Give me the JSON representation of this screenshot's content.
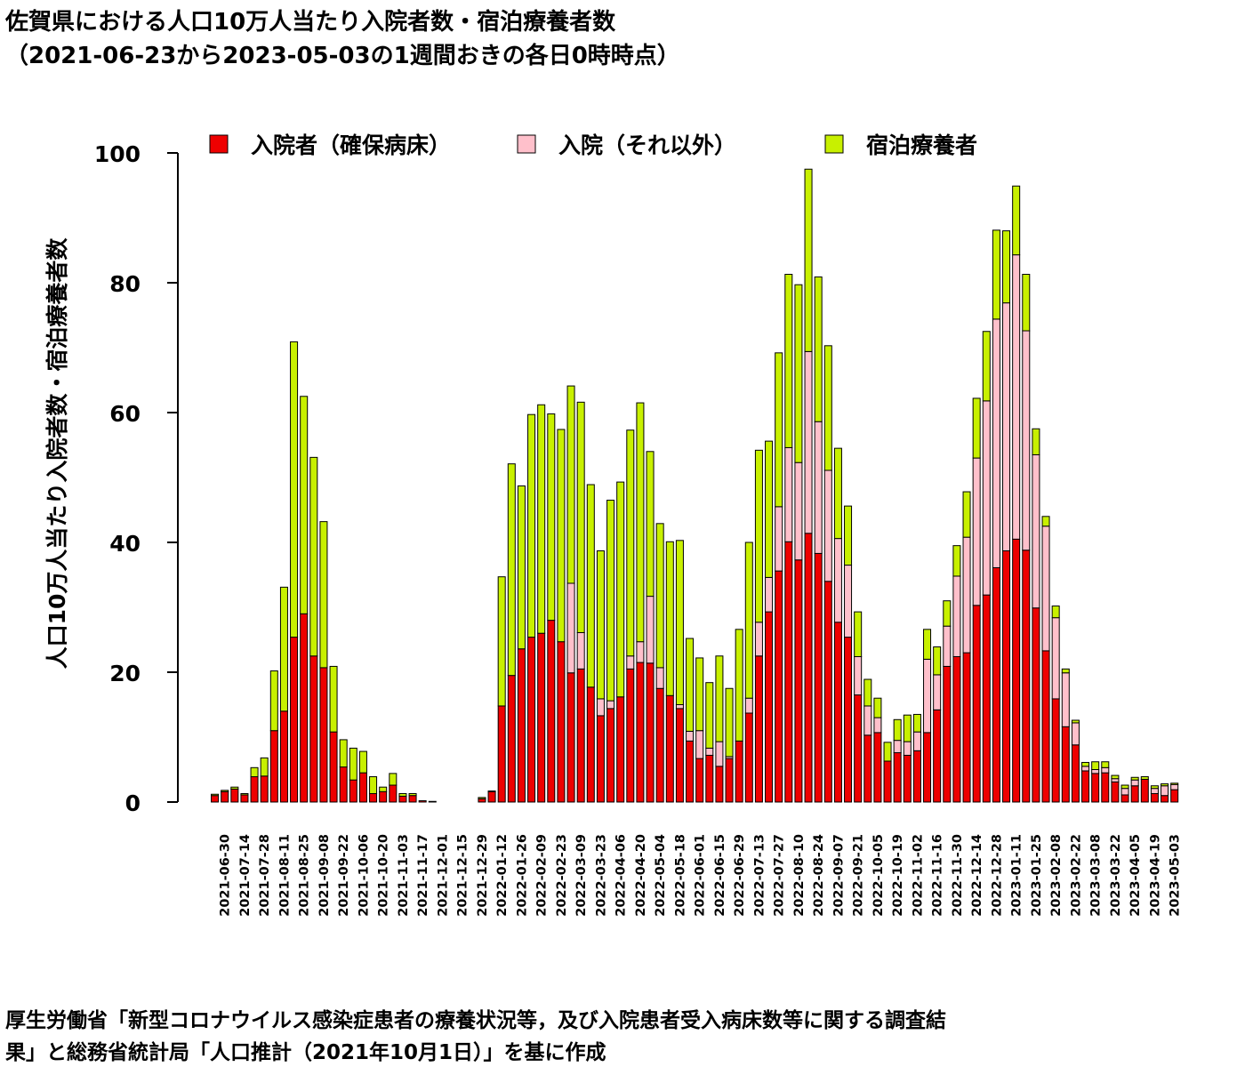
{
  "title_line1": "佐賀県における人口10万人当たり入院者数・宿泊療養者数",
  "title_line2": "（2021-06-23から2023-05-03の1週間おきの各日0時時点）",
  "source_line1": "厚生労働省「新型コロナウイルス感染症患者の療養状況等，及び入院患者受入病床数等に関する調査結",
  "source_line2": "果」と総務省統計局「人口推計（2021年10月1日）」を基に作成",
  "colors": {
    "hospitalized_secured": "#ee0000",
    "hospitalized_other": "#ffc0cb",
    "hotel": "#c8f000"
  },
  "chart_data": {
    "type": "bar",
    "stacked": true,
    "ylabel": "人口10万人当たり入院者数・宿泊療養者数",
    "ylim": [
      0,
      100
    ],
    "yticks": [
      0,
      20,
      40,
      60,
      80,
      100
    ],
    "legend_position": "top",
    "categories": [
      "2021-06-23",
      "2021-06-30",
      "2021-07-07",
      "2021-07-14",
      "2021-07-21",
      "2021-07-28",
      "2021-08-04",
      "2021-08-11",
      "2021-08-18",
      "2021-08-25",
      "2021-09-01",
      "2021-09-08",
      "2021-09-15",
      "2021-09-22",
      "2021-09-29",
      "2021-10-06",
      "2021-10-13",
      "2021-10-20",
      "2021-10-27",
      "2021-11-03",
      "2021-11-10",
      "2021-11-17",
      "2021-11-24",
      "2021-12-01",
      "2021-12-08",
      "2021-12-15",
      "2021-12-22",
      "2021-12-29",
      "2022-01-05",
      "2022-01-12",
      "2022-01-19",
      "2022-01-26",
      "2022-02-02",
      "2022-02-09",
      "2022-02-16",
      "2022-02-23",
      "2022-03-02",
      "2022-03-09",
      "2022-03-16",
      "2022-03-23",
      "2022-03-30",
      "2022-04-06",
      "2022-04-13",
      "2022-04-20",
      "2022-04-27",
      "2022-05-04",
      "2022-05-11",
      "2022-05-18",
      "2022-05-25",
      "2022-06-01",
      "2022-06-08",
      "2022-06-15",
      "2022-06-22",
      "2022-06-29",
      "2022-07-06",
      "2022-07-13",
      "2022-07-20",
      "2022-07-27",
      "2022-08-03",
      "2022-08-10",
      "2022-08-17",
      "2022-08-24",
      "2022-08-31",
      "2022-09-07",
      "2022-09-14",
      "2022-09-21",
      "2022-09-28",
      "2022-10-05",
      "2022-10-12",
      "2022-10-19",
      "2022-10-26",
      "2022-11-02",
      "2022-11-09",
      "2022-11-16",
      "2022-11-23",
      "2022-11-30",
      "2022-12-07",
      "2022-12-14",
      "2022-12-21",
      "2022-12-28",
      "2023-01-04",
      "2023-01-11",
      "2023-01-18",
      "2023-01-25",
      "2023-02-01",
      "2023-02-08",
      "2023-02-15",
      "2023-02-22",
      "2023-03-01",
      "2023-03-08",
      "2023-03-15",
      "2023-03-22",
      "2023-03-29",
      "2023-04-05",
      "2023-04-12",
      "2023-04-19",
      "2023-04-26",
      "2023-05-03"
    ],
    "xtick_labels": [
      "2021-06-30",
      "2021-07-14",
      "2021-07-28",
      "2021-08-11",
      "2021-08-25",
      "2021-09-08",
      "2021-09-22",
      "2021-10-06",
      "2021-10-20",
      "2021-11-03",
      "2021-11-17",
      "2021-12-01",
      "2021-12-15",
      "2021-12-29",
      "2022-01-12",
      "2022-01-26",
      "2022-02-09",
      "2022-02-23",
      "2022-03-09",
      "2022-03-23",
      "2022-04-06",
      "2022-04-20",
      "2022-05-04",
      "2022-05-18",
      "2022-06-01",
      "2022-06-15",
      "2022-06-29",
      "2022-07-13",
      "2022-07-27",
      "2022-08-10",
      "2022-08-24",
      "2022-09-07",
      "2022-09-21",
      "2022-10-05",
      "2022-10-19",
      "2022-11-02",
      "2022-11-16",
      "2022-11-30",
      "2022-12-14",
      "2022-12-28",
      "2023-01-11",
      "2023-01-25",
      "2023-02-08",
      "2023-02-22",
      "2023-03-08",
      "2023-03-22",
      "2023-04-05",
      "2023-04-19",
      "2023-05-03"
    ],
    "series": [
      {
        "name": "入院者（確保病床）",
        "color": "#ee0000",
        "values": [
          1.0,
          1.6,
          2.0,
          1.1,
          3.9,
          4.0,
          11.0,
          14.0,
          25.4,
          29.0,
          22.5,
          20.7,
          10.8,
          5.4,
          3.4,
          4.5,
          1.3,
          1.6,
          2.6,
          0.9,
          1.0,
          0.2,
          0.1,
          0,
          0,
          0,
          0,
          0.5,
          1.6,
          14.8,
          19.5,
          23.6,
          25.4,
          26.0,
          28.0,
          24.7,
          19.9,
          20.5,
          17.7,
          13.3,
          14.4,
          16.2,
          20.5,
          21.5,
          21.4,
          17.5,
          16.4,
          14.4,
          9.4,
          6.7,
          7.2,
          5.5,
          6.7,
          9.4,
          13.7,
          22.5,
          29.3,
          35.6,
          40.1,
          37.3,
          41.4,
          38.3,
          34.0,
          27.7,
          25.4,
          16.5,
          10.3,
          10.7,
          6.3,
          7.6,
          7.2,
          7.9,
          10.7,
          14.2,
          20.9,
          22.4,
          23.0,
          30.3,
          31.9,
          36.1,
          38.7,
          40.5,
          38.8,
          29.9,
          23.3,
          15.9,
          11.6,
          8.8,
          4.8,
          4.4,
          4.5,
          3.1,
          1.1,
          2.5,
          3.5,
          1.3,
          1.0,
          1.9
        ]
      },
      {
        "name": "入院（それ以外）",
        "color": "#ffc0cb",
        "values": [
          0,
          0,
          0,
          0,
          0,
          0,
          0,
          0,
          0,
          0,
          0,
          0,
          0,
          0,
          0,
          0,
          0,
          0,
          0,
          0,
          0,
          0,
          0,
          0,
          0,
          0,
          0,
          0,
          0,
          0,
          0,
          0,
          0,
          0,
          0,
          0,
          13.8,
          5.6,
          0,
          2.6,
          1.2,
          0,
          2.0,
          3.2,
          10.3,
          3.2,
          0,
          0.6,
          1.5,
          4.3,
          1.1,
          3.8,
          0.3,
          0,
          2.3,
          5.2,
          5.3,
          9.9,
          14.5,
          15.0,
          28.0,
          20.3,
          17.1,
          12.9,
          11.1,
          5.9,
          4.5,
          2.3,
          0,
          1.9,
          2.1,
          2.9,
          11.3,
          5.4,
          6.2,
          12.4,
          17.8,
          22.7,
          29.9,
          38.3,
          38.2,
          43.8,
          33.8,
          23.6,
          19.2,
          12.5,
          8.3,
          3.4,
          0.7,
          0.6,
          0.8,
          0.5,
          1.0,
          0.9,
          0,
          0.8,
          1.5,
          0.8
        ]
      },
      {
        "name": "宿泊療養者",
        "color": "#c8f000",
        "values": [
          0.2,
          0.2,
          0.3,
          0.2,
          1.4,
          2.8,
          9.2,
          19.1,
          45.5,
          33.5,
          30.6,
          22.5,
          10.1,
          4.2,
          4.9,
          3.3,
          2.6,
          0.7,
          1.8,
          0.4,
          0.3,
          0,
          0,
          0,
          0,
          0,
          0,
          0.2,
          0.1,
          19.9,
          32.6,
          25.1,
          34.3,
          35.2,
          31.8,
          32.7,
          30.4,
          35.5,
          31.2,
          22.8,
          30.9,
          33.1,
          34.8,
          36.8,
          22.3,
          22.2,
          23.7,
          25.3,
          14.3,
          11.2,
          10.1,
          13.2,
          10.5,
          17.2,
          24.0,
          26.5,
          21.0,
          23.7,
          26.7,
          27.4,
          28.1,
          22.3,
          19.2,
          13.9,
          9.1,
          6.9,
          4.1,
          3.0,
          2.9,
          3.2,
          4.1,
          2.7,
          4.6,
          4.3,
          3.9,
          4.7,
          7.0,
          9.2,
          10.7,
          13.7,
          11.1,
          10.6,
          8.7,
          4.0,
          1.5,
          1.8,
          0.6,
          0.4,
          0.6,
          1.2,
          0.9,
          0.5,
          0.5,
          0.4,
          0.4,
          0.4,
          0.3,
          0.2
        ]
      }
    ]
  }
}
